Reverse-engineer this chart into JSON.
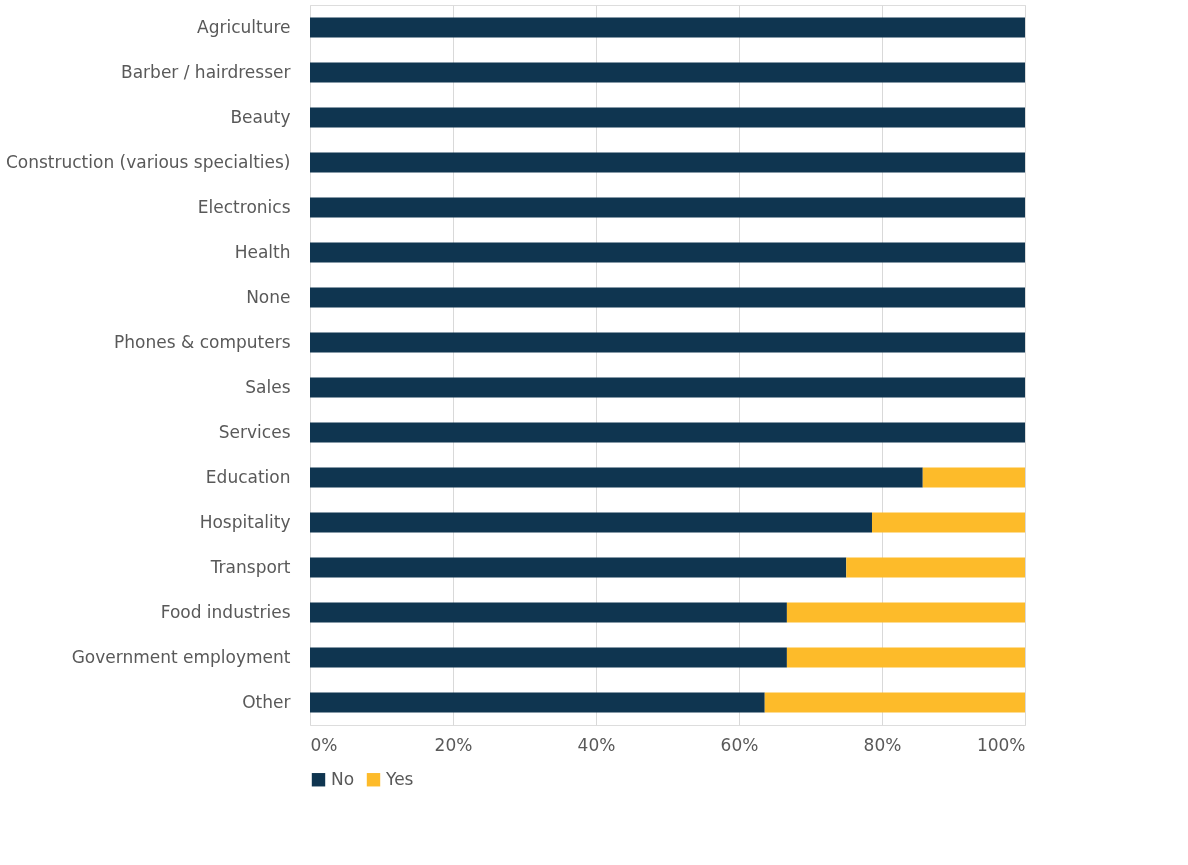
{
  "chart_data": {
    "type": "bar",
    "orientation": "horizontal",
    "stacked": true,
    "categories": [
      "Agriculture",
      "Barber / hairdresser",
      "Beauty",
      "Construction (various specialties)",
      "Electronics",
      "Health",
      "None",
      "Phones & computers",
      "Sales",
      "Services",
      "Education",
      "Hospitality",
      "Transport",
      "Food industries",
      "Government employment",
      "Other"
    ],
    "series": [
      {
        "name": "No",
        "color": "#0f3550",
        "values": [
          100,
          100,
          100,
          100,
          100,
          100,
          100,
          100,
          100,
          100,
          85.7,
          78.6,
          75,
          66.7,
          66.7,
          63.6
        ]
      },
      {
        "name": "Yes",
        "color": "#fdbb2a",
        "values": [
          0,
          0,
          0,
          0,
          0,
          0,
          0,
          0,
          0,
          0,
          14.3,
          21.4,
          25,
          33.3,
          33.3,
          36.4
        ]
      }
    ],
    "xlim": [
      0,
      100
    ],
    "xticks": [
      {
        "value": 0,
        "label": "0%"
      },
      {
        "value": 20,
        "label": "20%"
      },
      {
        "value": 40,
        "label": "40%"
      },
      {
        "value": 60,
        "label": "60%"
      },
      {
        "value": 80,
        "label": "80%"
      },
      {
        "value": 100,
        "label": "100%"
      }
    ],
    "grid": "x",
    "legend": "bottom"
  }
}
